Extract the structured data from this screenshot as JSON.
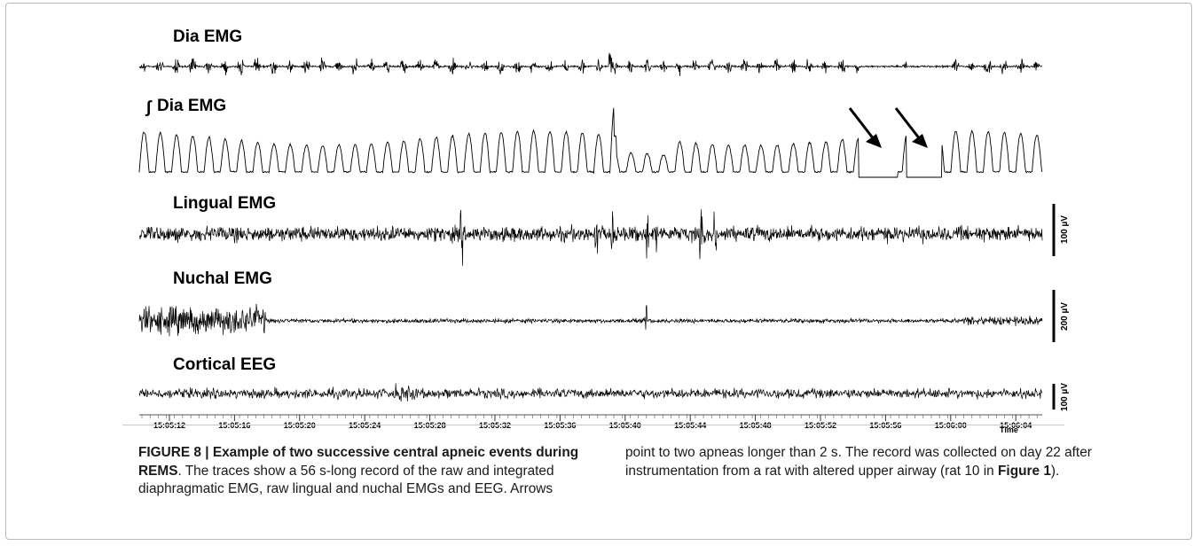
{
  "figure": {
    "traces": [
      {
        "id": "dia",
        "label": "Dia EMG"
      },
      {
        "id": "int",
        "label_symbol": "∫",
        "label": "Dia EMG"
      },
      {
        "id": "lingual",
        "label": "Lingual EMG",
        "scale": "100 µV"
      },
      {
        "id": "nuchal",
        "label": "Nuchal EMG",
        "scale": "200 µV"
      },
      {
        "id": "eeg",
        "label": "Cortical EEG",
        "scale": "100 µV"
      }
    ],
    "time_ticks": [
      "15:05:12",
      "15:05:16",
      "15:05:20",
      "15:05:24",
      "15:05:28",
      "15:05:32",
      "15:05:36",
      "15:05:40",
      "15:05:44",
      "15:05:48",
      "15:05:52",
      "15:05:56",
      "15:06:00",
      "15:06:04"
    ],
    "time_axis_label": "Time",
    "arrow_count": 2
  },
  "caption": {
    "fig_label": "FIGURE 8 | Example of two successive central apneic events during REMS",
    "text_left": ". The traces show a 56 s-long record of the raw and integrated diaphragmatic EMG, raw lingual and nuchal EMGs and EEG. Arrows",
    "text_right_1": "point to two apneas longer than 2 s. The record was collected on day 22 after instrumentation from a rat with altered upper airway (rat 10 in ",
    "fig_ref": "Figure 1",
    "text_right_2": ")."
  }
}
